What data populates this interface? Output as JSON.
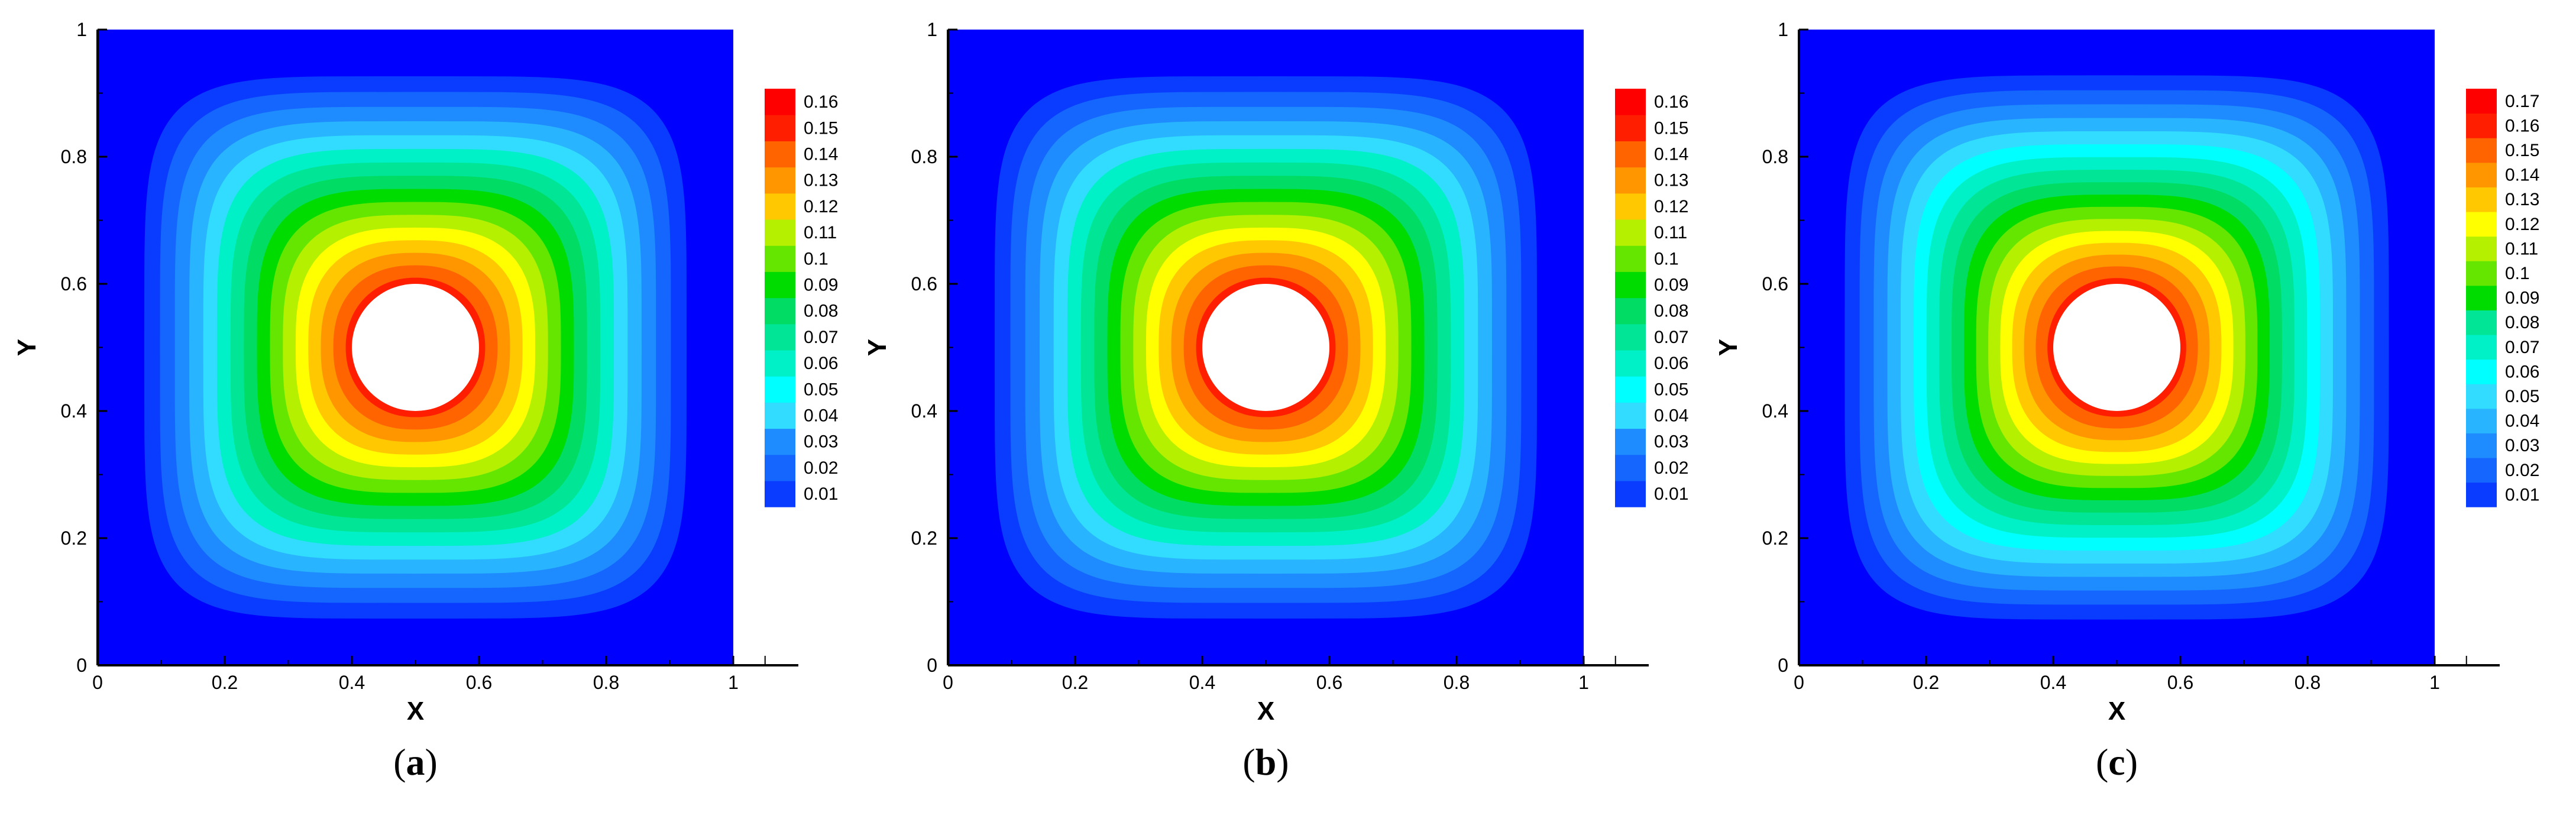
{
  "chart_data": [
    {
      "type": "heatmap",
      "caption": {
        "open": "(",
        "letter": "a",
        "close": ")"
      },
      "xlabel": "X",
      "ylabel": "Y",
      "xlim": [
        0,
        1
      ],
      "ylim": [
        0,
        1
      ],
      "x_ticks": [
        "0",
        "0.2",
        "0.4",
        "0.6",
        "0.8",
        "1"
      ],
      "y_ticks": [
        "0",
        "0.2",
        "0.4",
        "0.6",
        "0.8",
        "1"
      ],
      "hole": {
        "center": [
          0.5,
          0.5
        ],
        "radius": 0.1
      },
      "field_max": 0.165,
      "legend_position": "right",
      "colorbar_levels": [
        "0.01",
        "0.02",
        "0.03",
        "0.04",
        "0.05",
        "0.06",
        "0.07",
        "0.08",
        "0.09",
        "0.1",
        "0.11",
        "0.12",
        "0.13",
        "0.14",
        "0.15",
        "0.16"
      ]
    },
    {
      "type": "heatmap",
      "caption": {
        "open": "(",
        "letter": "b",
        "close": ")"
      },
      "xlabel": "X",
      "ylabel": "Y",
      "xlim": [
        0,
        1
      ],
      "ylim": [
        0,
        1
      ],
      "x_ticks": [
        "0",
        "0.2",
        "0.4",
        "0.6",
        "0.8",
        "1"
      ],
      "y_ticks": [
        "0",
        "0.2",
        "0.4",
        "0.6",
        "0.8",
        "1"
      ],
      "hole": {
        "center": [
          0.5,
          0.5
        ],
        "radius": 0.1
      },
      "field_max": 0.165,
      "legend_position": "right",
      "colorbar_levels": [
        "0.01",
        "0.02",
        "0.03",
        "0.04",
        "0.05",
        "0.06",
        "0.07",
        "0.08",
        "0.09",
        "0.1",
        "0.11",
        "0.12",
        "0.13",
        "0.14",
        "0.15",
        "0.16"
      ]
    },
    {
      "type": "heatmap",
      "caption": {
        "open": "(",
        "letter": "c",
        "close": ")"
      },
      "xlabel": "X",
      "ylabel": "Y",
      "xlim": [
        0,
        1
      ],
      "ylim": [
        0,
        1
      ],
      "x_ticks": [
        "0",
        "0.2",
        "0.4",
        "0.6",
        "0.8",
        "1"
      ],
      "y_ticks": [
        "0",
        "0.2",
        "0.4",
        "0.6",
        "0.8",
        "1"
      ],
      "hole": {
        "center": [
          0.5,
          0.5
        ],
        "radius": 0.1
      },
      "field_max": 0.175,
      "legend_position": "right",
      "colorbar_levels": [
        "0.01",
        "0.02",
        "0.03",
        "0.04",
        "0.05",
        "0.06",
        "0.07",
        "0.08",
        "0.09",
        "0.1",
        "0.11",
        "0.12",
        "0.13",
        "0.14",
        "0.15",
        "0.16",
        "0.17"
      ]
    }
  ],
  "colormap": [
    "#0000ff",
    "#0a3cff",
    "#1466ff",
    "#1e8cff",
    "#28b4ff",
    "#32dcff",
    "#00ffff",
    "#00f0c8",
    "#00e696",
    "#00dc64",
    "#00dc00",
    "#64e600",
    "#b4f000",
    "#ffff00",
    "#ffc800",
    "#ff9600",
    "#ff6400",
    "#ff1e00",
    "#ff0000"
  ],
  "hole_color": "#ffffff"
}
